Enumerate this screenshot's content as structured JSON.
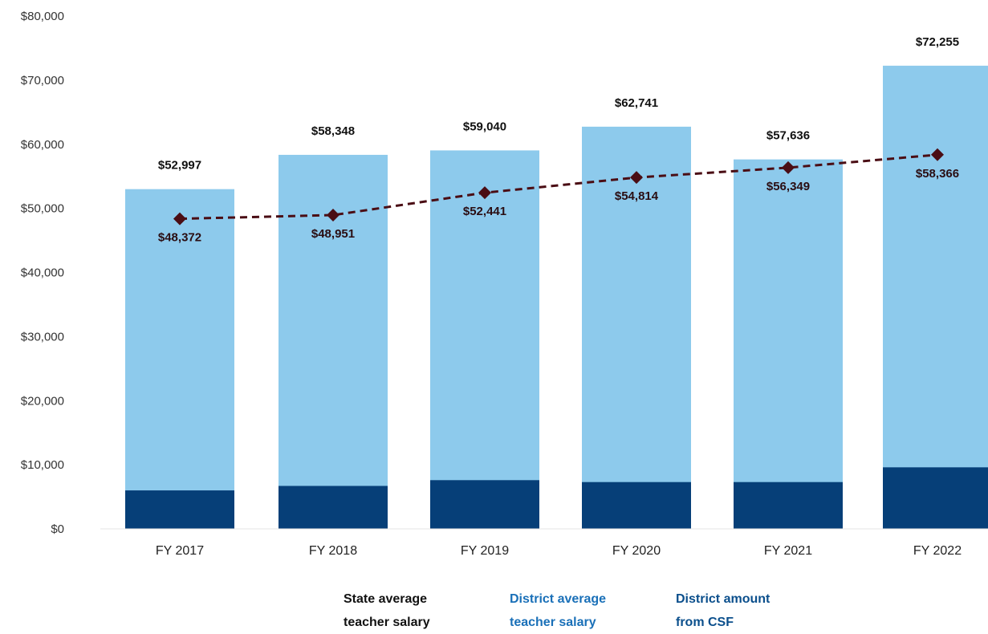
{
  "chart_data": {
    "type": "bar",
    "categories": [
      "FY 2017",
      "FY 2018",
      "FY 2019",
      "FY 2020",
      "FY 2021",
      "FY 2022"
    ],
    "series": [
      {
        "name": "District average teacher salary",
        "kind": "bar",
        "values": [
          52997,
          58348,
          59040,
          62741,
          57636,
          72255
        ],
        "labels": [
          "$52,997",
          "$58,348",
          "$59,040",
          "$62,741",
          "$57,636",
          "$72,255"
        ],
        "color": "#8dcaec"
      },
      {
        "name": "District amount from CSF",
        "kind": "bar",
        "values": [
          6000,
          6700,
          7600,
          7300,
          7300,
          9600
        ],
        "color": "#063f78"
      },
      {
        "name": "State average teacher salary",
        "kind": "line",
        "values": [
          48372,
          48951,
          52441,
          54814,
          56349,
          58366
        ],
        "labels": [
          "$48,372",
          "$48,951",
          "$52,441",
          "$54,814",
          "$56,349",
          "$58,366"
        ],
        "color": "#4a0d14"
      }
    ],
    "y_ticks": [
      "$0",
      "$10,000",
      "$20,000",
      "$30,000",
      "$40,000",
      "$50,000",
      "$60,000",
      "$70,000",
      "$80,000"
    ],
    "ylim": [
      0,
      80000
    ],
    "grid": false,
    "legend_placement": "bottom-center"
  },
  "legend": {
    "state_label": "State average\nteacher salary",
    "district_label": "District average\nteacher salary",
    "csf_label": "District amount\nfrom CSF"
  }
}
